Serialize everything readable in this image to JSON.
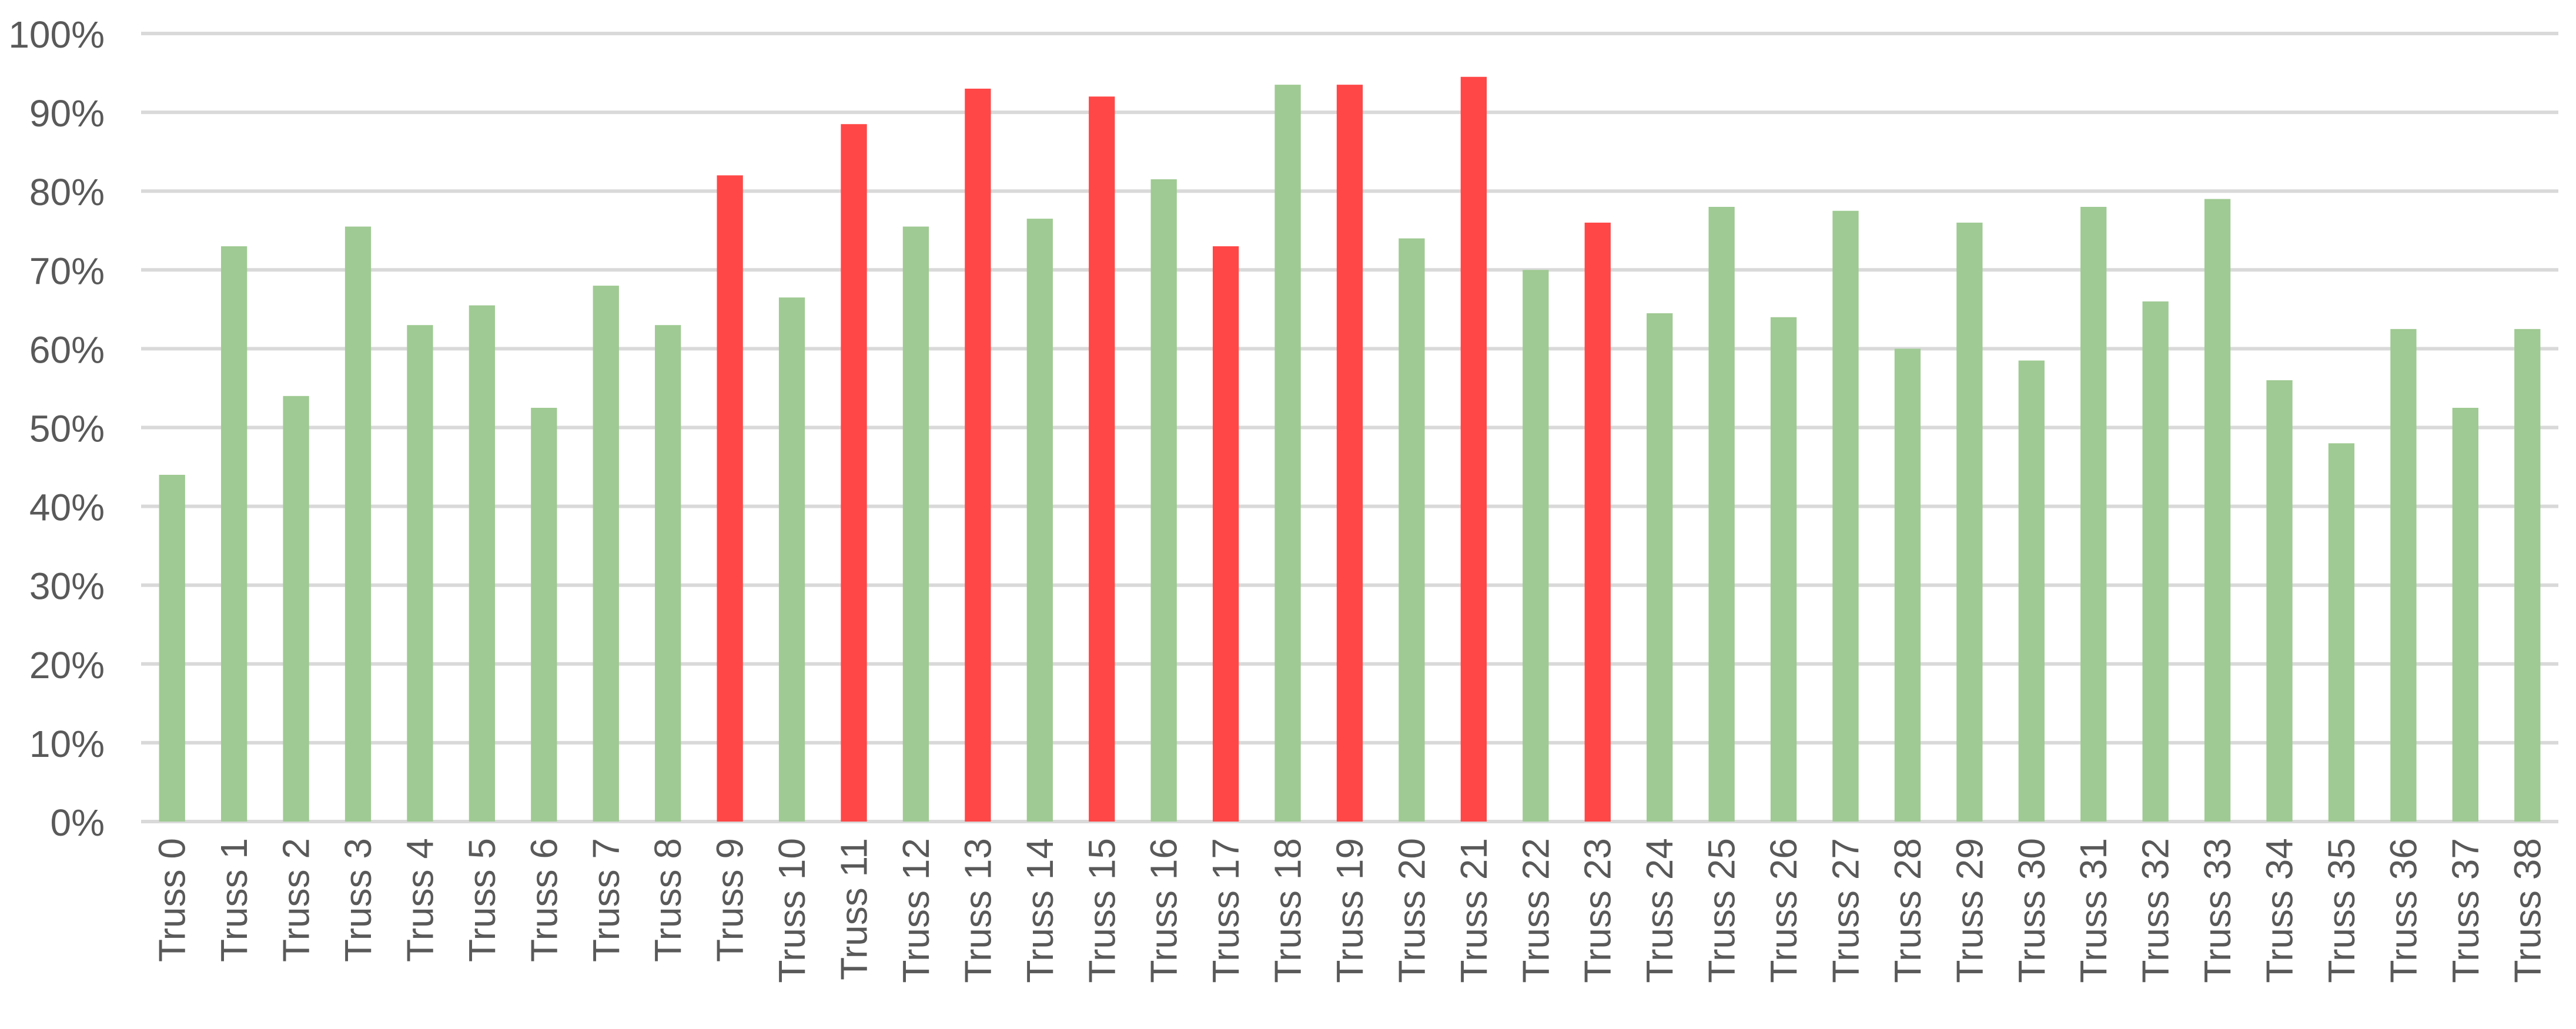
{
  "chart_data": {
    "type": "bar",
    "title": "",
    "xlabel": "",
    "ylabel": "",
    "ylim": [
      0,
      100
    ],
    "yticks": [
      "0%",
      "10%",
      "20%",
      "30%",
      "40%",
      "50%",
      "60%",
      "70%",
      "80%",
      "90%",
      "100%"
    ],
    "grid": true,
    "legend": "none",
    "categories": [
      "Truss 0",
      "Truss 1",
      "Truss 2",
      "Truss 3",
      "Truss 4",
      "Truss 5",
      "Truss 6",
      "Truss 7",
      "Truss 8",
      "Truss 9",
      "Truss 10",
      "Truss 11",
      "Truss 12",
      "Truss 13",
      "Truss 14",
      "Truss 15",
      "Truss 16",
      "Truss 17",
      "Truss 18",
      "Truss 19",
      "Truss 20",
      "Truss 21",
      "Truss 22",
      "Truss 23",
      "Truss 24",
      "Truss 25",
      "Truss 26",
      "Truss 27",
      "Truss 28",
      "Truss 29",
      "Truss 30",
      "Truss 31",
      "Truss 32",
      "Truss 33",
      "Truss 34",
      "Truss 35",
      "Truss 36",
      "Truss 37",
      "Truss 38"
    ],
    "values": [
      44,
      73,
      54,
      75.5,
      63,
      65.5,
      52.5,
      68,
      63,
      82,
      66.5,
      88.5,
      75.5,
      93,
      76.5,
      92,
      81.5,
      73,
      93.5,
      93.5,
      74,
      94.5,
      70,
      76,
      64.5,
      78,
      64,
      77.5,
      60,
      76,
      58.5,
      78,
      66,
      79,
      56,
      48,
      62.5,
      52.5,
      62.5
    ],
    "highlighted": [
      false,
      false,
      false,
      false,
      false,
      false,
      false,
      false,
      false,
      true,
      false,
      true,
      false,
      true,
      false,
      true,
      false,
      true,
      false,
      true,
      false,
      true,
      false,
      true,
      false,
      false,
      false,
      false,
      false,
      false,
      false,
      false,
      false,
      false,
      false,
      false,
      false,
      false,
      false
    ],
    "colors": {
      "normal": "#9fca93",
      "highlight": "#ff4747",
      "grid": "#d9d9d9",
      "text": "#595959"
    }
  }
}
